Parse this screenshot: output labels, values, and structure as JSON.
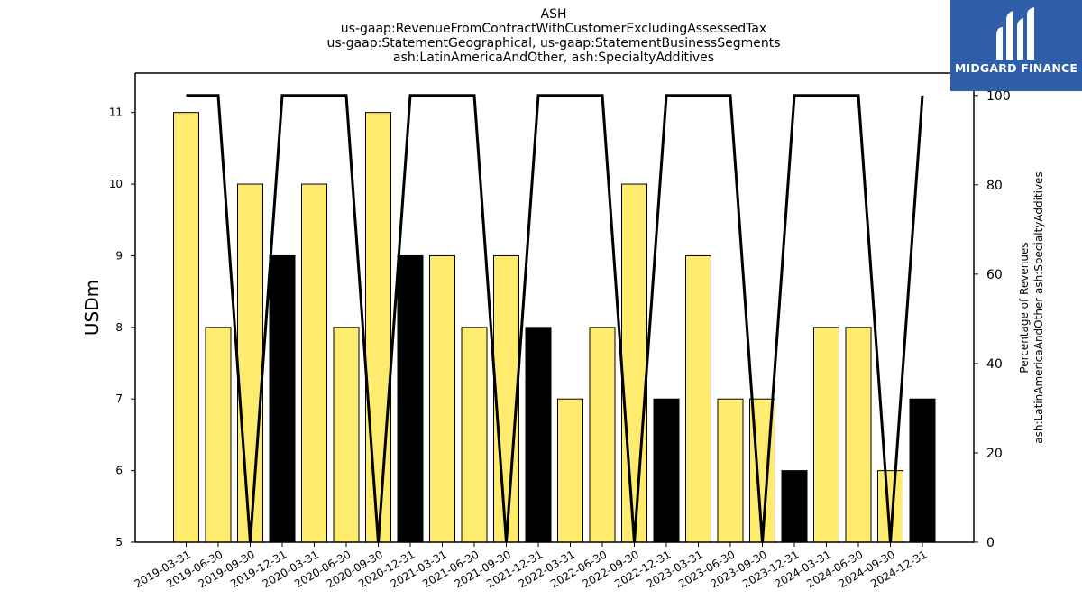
{
  "chart_data": {
    "type": "bar",
    "title_lines": [
      "ASH",
      "us-gaap:RevenueFromContractWithCustomerExcludingAssessedTax",
      "us-gaap:StatementGeographical, us-gaap:StatementBusinessSegments",
      "ash:LatinAmericaAndOther, ash:SpecialtyAdditives"
    ],
    "ylabel": "USDm",
    "y2label_lines": [
      "Percentage of Revenues",
      "ash:LatinAmericaAndOther ash:SpecialtyAdditives"
    ],
    "ylim": [
      5,
      11.55
    ],
    "y2lim": [
      0,
      105
    ],
    "yticks": [
      5,
      6,
      7,
      8,
      9,
      10,
      11
    ],
    "y2ticks": [
      0,
      20,
      40,
      60,
      80,
      100
    ],
    "categories": [
      "2019-03-31",
      "2019-06-30",
      "2019-09-30",
      "2019-12-31",
      "2020-03-31",
      "2020-06-30",
      "2020-09-30",
      "2020-12-31",
      "2021-03-31",
      "2021-06-30",
      "2021-09-30",
      "2021-12-31",
      "2022-03-31",
      "2022-06-30",
      "2022-09-30",
      "2022-12-31",
      "2023-03-31",
      "2023-06-30",
      "2023-09-30",
      "2023-12-31",
      "2024-03-31",
      "2024-06-30",
      "2024-09-30",
      "2024-12-31"
    ],
    "series": [
      {
        "values": [
          11,
          8,
          10,
          9,
          10,
          8,
          11,
          9,
          9,
          8,
          9,
          8,
          7,
          8,
          10,
          7,
          9,
          7,
          7,
          6,
          8,
          8,
          6,
          7
        ]
      },
      {
        "values": [
          100,
          100,
          0,
          100,
          100,
          100,
          0,
          100,
          100,
          100,
          0,
          100,
          100,
          100,
          0,
          100,
          100,
          100,
          0,
          100,
          100,
          100,
          0,
          100
        ]
      }
    ],
    "bar_colors": [
      "yellow",
      "yellow",
      "yellow",
      "black",
      "yellow",
      "yellow",
      "yellow",
      "black",
      "yellow",
      "yellow",
      "yellow",
      "black",
      "yellow",
      "yellow",
      "yellow",
      "black",
      "yellow",
      "yellow",
      "yellow",
      "black",
      "yellow",
      "yellow",
      "yellow",
      "black"
    ],
    "colors": {
      "yellow": "#ffec6e",
      "black": "#000000",
      "line": "#000000"
    }
  },
  "logo": {
    "text": "MIDGARD FINANCE",
    "bg": "#2f5fa8"
  }
}
